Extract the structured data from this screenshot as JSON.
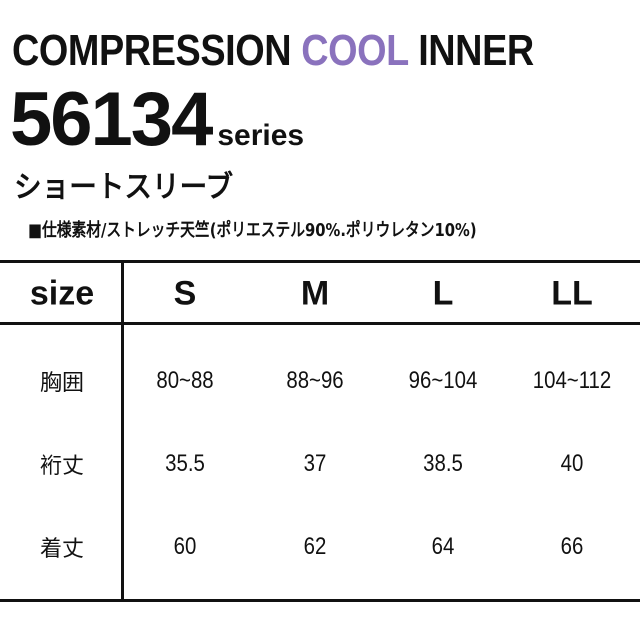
{
  "header": {
    "title_prefix": "COMPRESSION ",
    "title_accent": "COOL",
    "title_suffix": " INNER",
    "series_number": "56134",
    "series_suffix": "series",
    "subtitle": "ショートスリーブ",
    "spec": "■仕様素材/ストレッチ天竺(ポリエステル90%.ポリウレタン10%)",
    "accent_color": "#8a72bd"
  },
  "table": {
    "header_label": "size",
    "sizes": [
      "S",
      "M",
      "L",
      "LL"
    ],
    "rows": [
      {
        "label": "胸囲",
        "values": [
          "80~88",
          "88~96",
          "96~104",
          "104~112"
        ]
      },
      {
        "label": "裄丈",
        "values": [
          "35.5",
          "37",
          "38.5",
          "40"
        ]
      },
      {
        "label": "着丈",
        "values": [
          "60",
          "62",
          "64",
          "66"
        ]
      }
    ]
  }
}
